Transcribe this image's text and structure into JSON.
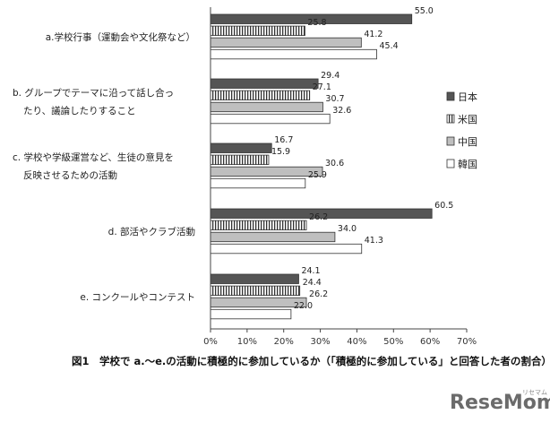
{
  "chart_data": {
    "type": "bar",
    "orientation": "horizontal",
    "categories": [
      [
        "a.学校行事（運動会や文化祭など）"
      ],
      [
        "b. グループでテーマに沿って話し合っ",
        "たり、議論したりすること"
      ],
      [
        "c. 学校や学級運営など、生徒の意見を",
        "反映させるための活動"
      ],
      [
        "d. 部活やクラブ活動"
      ],
      [
        "e. コンクールやコンテスト"
      ]
    ],
    "series": [
      {
        "name": "日本",
        "values": [
          55.0,
          29.4,
          16.7,
          60.5,
          24.1
        ],
        "labels": [
          "55.0",
          "29.4",
          "16.7",
          "60.5",
          "24.1"
        ]
      },
      {
        "name": "米国",
        "values": [
          25.8,
          27.1,
          15.9,
          26.2,
          24.4
        ],
        "labels": [
          "25.8",
          "27.1",
          "15.9",
          "26.2",
          "24.4"
        ]
      },
      {
        "name": "中国",
        "values": [
          41.2,
          30.7,
          30.6,
          34.0,
          26.2
        ],
        "labels": [
          "41.2",
          "30.7",
          "30.6",
          "34.0",
          "26.2"
        ]
      },
      {
        "name": "韓国",
        "values": [
          45.4,
          32.6,
          25.9,
          41.3,
          22.0
        ],
        "labels": [
          "45.4",
          "32.6",
          "25.9",
          "41.3",
          "22.0"
        ]
      }
    ],
    "series_colors": [
      "#555555",
      "stripes",
      "#bfbfbf",
      "#ffffff"
    ],
    "xlim": [
      0,
      70
    ],
    "x_ticks": [
      "0%",
      "10%",
      "20%",
      "30%",
      "40%",
      "50%",
      "60%",
      "70%"
    ],
    "legend_position": "right",
    "grid": false,
    "caption": "図1　学校で a.～e.の活動に積極的に参加しているか（「積極的に参加している」と回答した者の割合）"
  },
  "watermark": {
    "text": "ReseMom",
    "small": "リセマム"
  }
}
